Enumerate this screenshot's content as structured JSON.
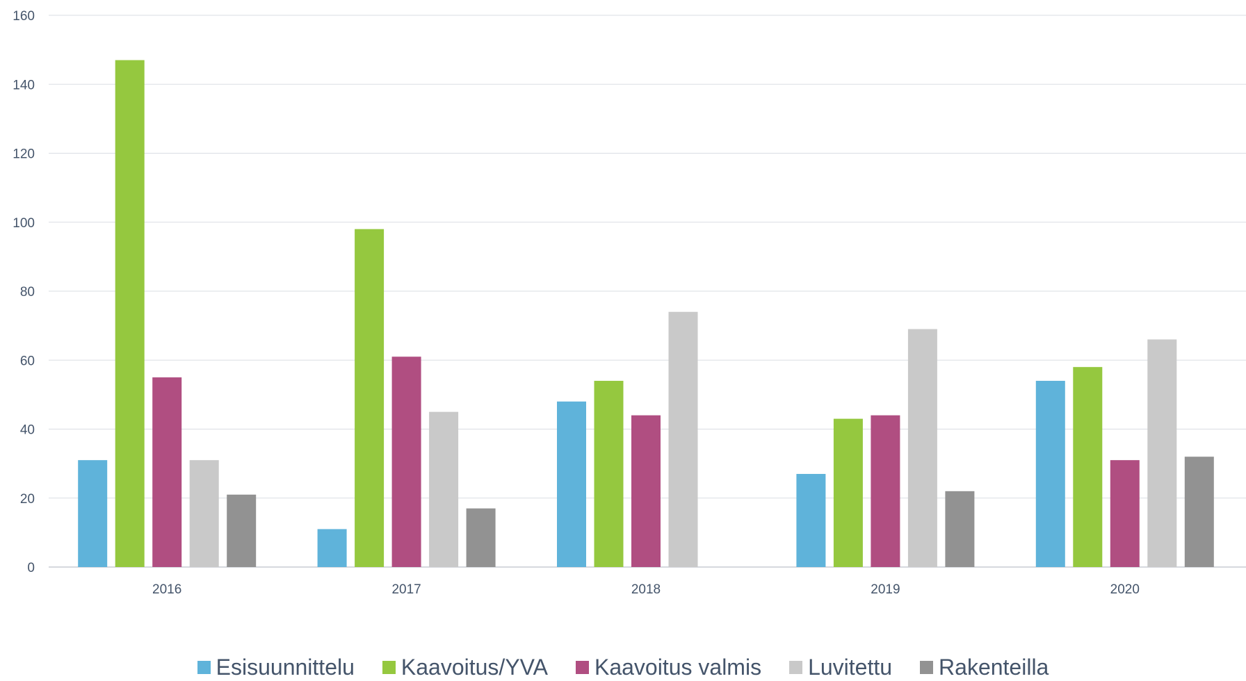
{
  "chart_data": {
    "type": "bar",
    "categories": [
      "2016",
      "2017",
      "2018",
      "2019",
      "2020"
    ],
    "series": [
      {
        "name": "Esisuunnittelu",
        "color": "#5fb3da",
        "values": [
          31,
          11,
          48,
          27,
          54
        ]
      },
      {
        "name": "Kaavoitus/YVA",
        "color": "#95c83f",
        "values": [
          147,
          98,
          54,
          43,
          58
        ]
      },
      {
        "name": "Kaavoitus valmis",
        "color": "#b04e81",
        "values": [
          55,
          61,
          44,
          44,
          31
        ]
      },
      {
        "name": "Luvitettu",
        "color": "#c9c9c9",
        "values": [
          31,
          45,
          74,
          69,
          66
        ]
      },
      {
        "name": "Rakenteilla",
        "color": "#929292",
        "values": [
          21,
          17,
          0,
          22,
          32
        ]
      }
    ],
    "ylim": [
      0,
      160
    ],
    "yticks": [
      0,
      20,
      40,
      60,
      80,
      100,
      120,
      140,
      160
    ],
    "grid": true,
    "legend_position": "bottom",
    "title": "",
    "xlabel": "",
    "ylabel": ""
  }
}
